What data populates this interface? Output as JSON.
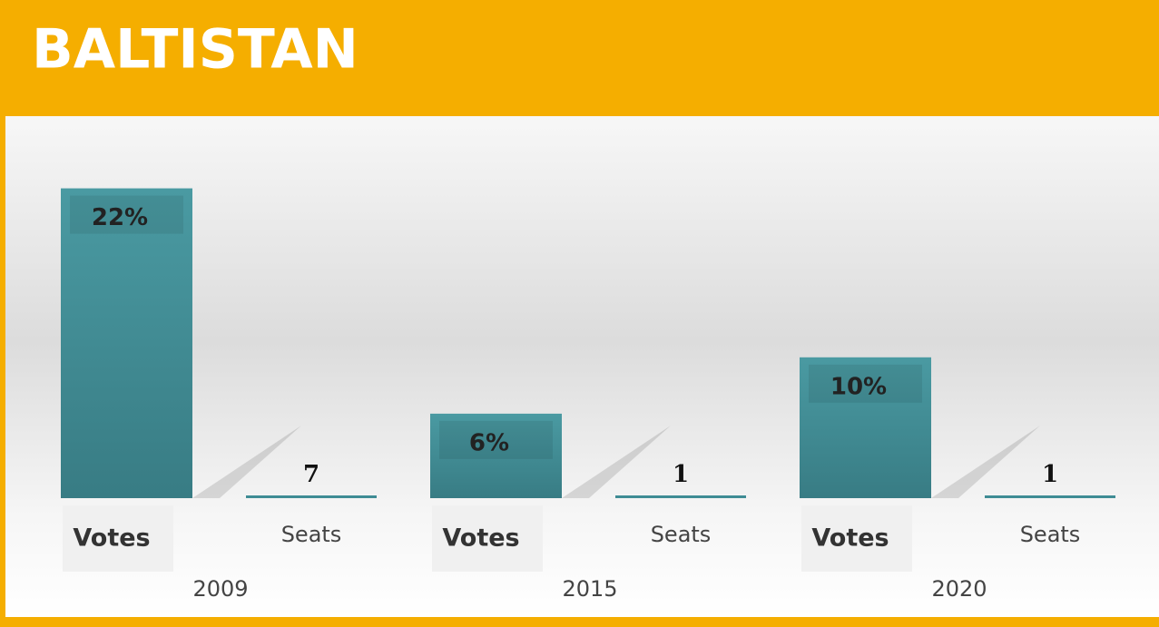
{
  "chart_data": {
    "type": "bar",
    "title": "BALTISTAN",
    "categories": [
      "2009",
      "2015",
      "2020"
    ],
    "series": [
      {
        "name": "Votes",
        "color": "#3f8c94",
        "values": [
          22,
          6,
          10
        ],
        "value_labels": [
          "22%",
          "6%",
          "10%"
        ]
      },
      {
        "name": "Seats",
        "color": "#3f8c94",
        "values": [
          7,
          1,
          1
        ]
      }
    ],
    "ylim": [
      0,
      25
    ]
  }
}
